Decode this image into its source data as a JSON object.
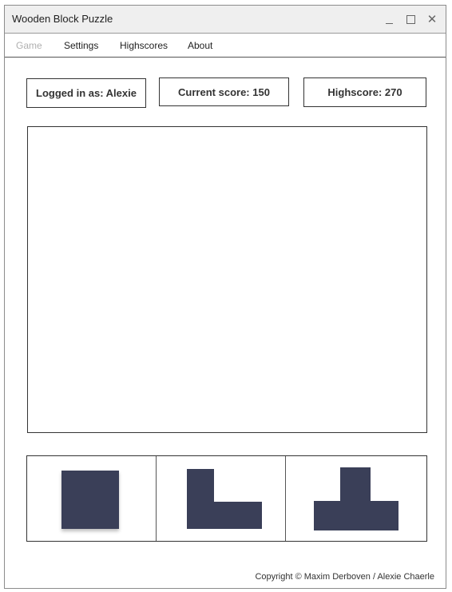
{
  "window": {
    "title": "Wooden Block Puzzle",
    "controls": {
      "minimize": "_",
      "maximize": "□",
      "close": "✕"
    }
  },
  "menu": {
    "items": [
      {
        "label": "Game",
        "enabled": false
      },
      {
        "label": "Settings",
        "enabled": true
      },
      {
        "label": "Highscores",
        "enabled": true
      },
      {
        "label": "About",
        "enabled": true
      }
    ]
  },
  "status": {
    "logged_in": "Logged in as: Alexie",
    "current_score": "Current score: 150",
    "highscore": "Highscore: 270"
  },
  "pieces": {
    "color": "#3a3f58",
    "shapes": [
      "square",
      "l-shape",
      "t-shape"
    ]
  },
  "footer": {
    "copyright": "Copyright © Maxim Derboven / Alexie Chaerle"
  }
}
